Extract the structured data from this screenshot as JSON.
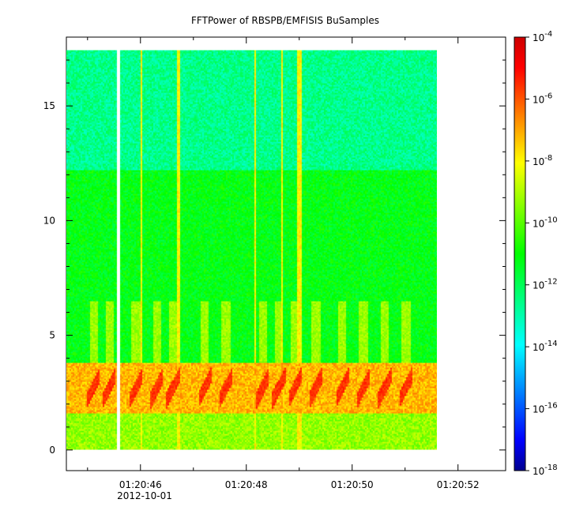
{
  "chart_data": {
    "type": "heatmap",
    "title": "FFTPower of RBSPB/EMFISIS  BuSamples",
    "xlabel": "",
    "ylabel": "",
    "x_ticks": [
      "01:20:46",
      "01:20:48",
      "01:20:50",
      "01:20:52"
    ],
    "x_tick_values": [
      46,
      48,
      50,
      52
    ],
    "x_date_label": "2012-10-01",
    "xlim": [
      44.6,
      52.9
    ],
    "x_data_range": [
      44.6,
      51.6
    ],
    "y_ticks": [
      "0",
      "5",
      "10",
      "15"
    ],
    "y_tick_values": [
      0,
      5,
      10,
      15
    ],
    "ylim": [
      -0.9,
      18.0
    ],
    "y_data_range": [
      0,
      17.5
    ],
    "data_gap_x": 45.55,
    "colorbar": {
      "scale": "log",
      "min_exponent": -18,
      "max_exponent": -4,
      "ticks": [
        "10^-4",
        "10^-6",
        "10^-8",
        "10^-10",
        "10^-12",
        "10^-14",
        "10^-16",
        "10^-18"
      ],
      "tick_exponents": [
        -4,
        -6,
        -8,
        -10,
        -12,
        -14,
        -16,
        -18
      ],
      "colormap": [
        "#00008f",
        "#0000ff",
        "#00ffff",
        "#00ff00",
        "#ffff00",
        "#ff0000",
        "#800000"
      ]
    },
    "bands": [
      {
        "y_from": 12.2,
        "y_to": 17.5,
        "log_power": -12.6
      },
      {
        "y_from": 3.8,
        "y_to": 12.2,
        "log_power": -11.2
      },
      {
        "y_from": 1.6,
        "y_to": 3.8,
        "log_power": -7.2
      },
      {
        "y_from": 0,
        "y_to": 1.6,
        "log_power": -9.3
      }
    ],
    "chorus_elements": [
      45.1,
      45.4,
      45.9,
      46.3,
      46.6,
      47.2,
      47.6,
      48.3,
      48.6,
      48.9,
      49.3,
      49.8,
      50.2,
      50.6,
      51.0
    ],
    "spikes": [
      46.0,
      46.7,
      48.15,
      48.65,
      48.95,
      49.0
    ]
  }
}
